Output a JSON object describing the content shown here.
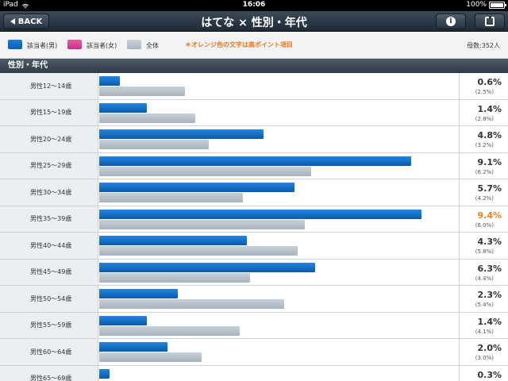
{
  "status_bar": {
    "carrier": "iPad",
    "time": "16:06",
    "battery": "100%",
    "battery_level": 1.0
  },
  "nav": {
    "back_label": "BACK",
    "title": "はてな × 性別・年代"
  },
  "legend": {
    "items": [
      {
        "label": "該当者(男)",
        "color": "#1674d1"
      },
      {
        "label": "該当者(女)",
        "color": "#e0489a"
      },
      {
        "label": "全体",
        "color": "#b6c1cb"
      }
    ],
    "note": "＊オレンジ色の文字は高ポイント項目",
    "count": "母数:352人"
  },
  "section_title": "性別・年代",
  "scale_max": 10.5,
  "rows": [
    {
      "label": "男性12〜14歳",
      "value": 0.6,
      "value_text": "0.6%",
      "overall": 2.5,
      "overall_text": "(2.5%)",
      "highlight": false
    },
    {
      "label": "男性15〜19歳",
      "value": 1.4,
      "value_text": "1.4%",
      "overall": 2.8,
      "overall_text": "(2.8%)",
      "highlight": false
    },
    {
      "label": "男性20〜24歳",
      "value": 4.8,
      "value_text": "4.8%",
      "overall": 3.2,
      "overall_text": "(3.2%)",
      "highlight": false
    },
    {
      "label": "男性25〜29歳",
      "value": 9.1,
      "value_text": "9.1%",
      "overall": 6.2,
      "overall_text": "(6.2%)",
      "highlight": false
    },
    {
      "label": "男性30〜34歳",
      "value": 5.7,
      "value_text": "5.7%",
      "overall": 4.2,
      "overall_text": "(4.2%)",
      "highlight": false
    },
    {
      "label": "男性35〜39歳",
      "value": 9.4,
      "value_text": "9.4%",
      "overall": 6.0,
      "overall_text": "(6.0%)",
      "highlight": true
    },
    {
      "label": "男性40〜44歳",
      "value": 4.3,
      "value_text": "4.3%",
      "overall": 5.8,
      "overall_text": "(5.8%)",
      "highlight": false
    },
    {
      "label": "男性45〜49歳",
      "value": 6.3,
      "value_text": "6.3%",
      "overall": 4.4,
      "overall_text": "(4.4%)",
      "highlight": false
    },
    {
      "label": "男性50〜54歳",
      "value": 2.3,
      "value_text": "2.3%",
      "overall": 5.4,
      "overall_text": "(5.4%)",
      "highlight": false
    },
    {
      "label": "男性55〜59歳",
      "value": 1.4,
      "value_text": "1.4%",
      "overall": 4.1,
      "overall_text": "(4.1%)",
      "highlight": false
    },
    {
      "label": "男性60〜64歳",
      "value": 2.0,
      "value_text": "2.0%",
      "overall": 3.0,
      "overall_text": "(3.0%)",
      "highlight": false
    },
    {
      "label": "男性65〜69歳",
      "value": 0.3,
      "value_text": "0.3%",
      "overall": null,
      "overall_text": "",
      "highlight": false
    }
  ]
}
